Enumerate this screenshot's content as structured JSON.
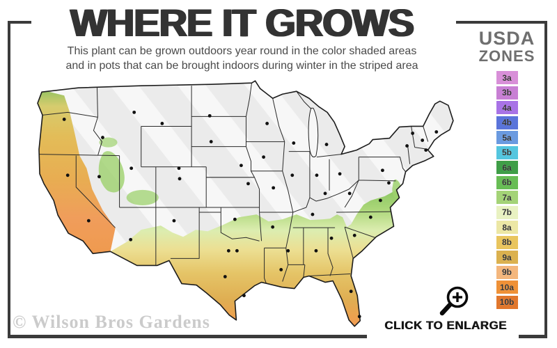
{
  "header": {
    "title": "WHERE IT GROWS",
    "subtitle_line1": "This plant can be grown outdoors year round in the color shaded areas",
    "subtitle_line2": "and in pots that can be brought indoors during winter in the striped area"
  },
  "legend": {
    "title_line1": "USDA",
    "title_line2": "ZONES",
    "zones": [
      {
        "label": "3a",
        "color": "#d88fd8"
      },
      {
        "label": "3b",
        "color": "#c87fd4"
      },
      {
        "label": "4a",
        "color": "#a873e6"
      },
      {
        "label": "4b",
        "color": "#5a74da"
      },
      {
        "label": "5a",
        "color": "#6a9ae0"
      },
      {
        "label": "5b",
        "color": "#54c6df"
      },
      {
        "label": "6a",
        "color": "#3f9e47"
      },
      {
        "label": "6b",
        "color": "#68bd55"
      },
      {
        "label": "7a",
        "color": "#a4d377"
      },
      {
        "label": "7b",
        "color": "#e9f2c2"
      },
      {
        "label": "8a",
        "color": "#ece7a5"
      },
      {
        "label": "8b",
        "color": "#e9c55e"
      },
      {
        "label": "9a",
        "color": "#dbb14f"
      },
      {
        "label": "9b",
        "color": "#f4b77d"
      },
      {
        "label": "10a",
        "color": "#ef9137"
      },
      {
        "label": "10b",
        "color": "#e1772c"
      }
    ]
  },
  "map": {
    "striped_area_meaning": "grow in pots, bring indoors during winter",
    "shaded_area_meaning": "grows outdoors year round",
    "base_gray": "#ebebeb",
    "zone_gradient": [
      "#7fc05a",
      "#aad678",
      "#dcedb0",
      "#ecdf92",
      "#e5c467",
      "#eda14f",
      "#ee8f3c"
    ]
  },
  "footer": {
    "watermark": "© Wilson Bros Gardens",
    "enlarge_label": "CLICK TO ENLARGE"
  }
}
